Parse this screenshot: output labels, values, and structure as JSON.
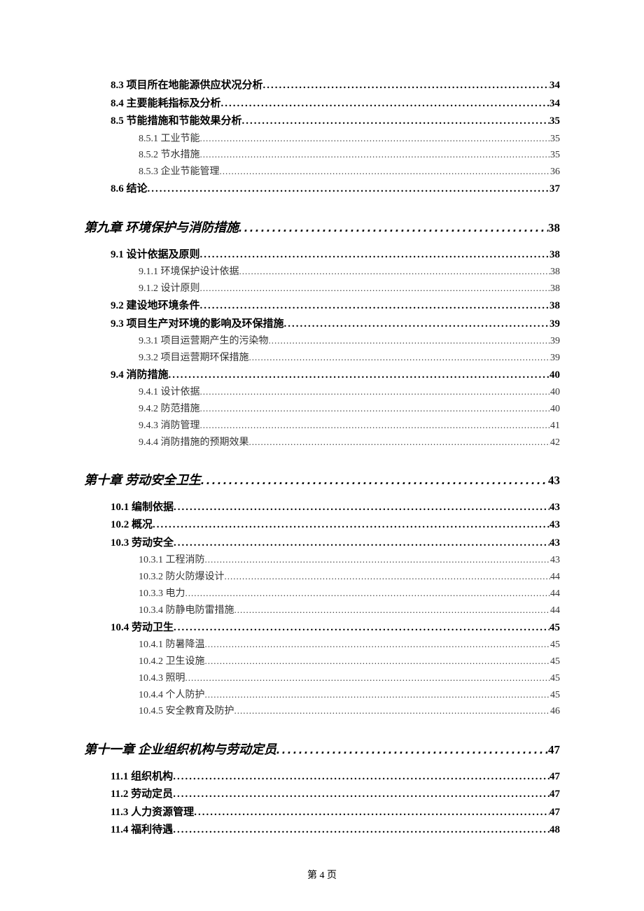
{
  "dots_char": ".",
  "footer": "第 4 页",
  "toc": [
    {
      "level": "section",
      "label": "8.3 项目所在地能源供应状况分析",
      "page": "34"
    },
    {
      "level": "section",
      "label": "8.4 主要能耗指标及分析",
      "page": "34"
    },
    {
      "level": "section",
      "label": "8.5 节能措施和节能效果分析",
      "page": "35"
    },
    {
      "level": "subsection",
      "label": "8.5.1 工业节能",
      "page": "35"
    },
    {
      "level": "subsection",
      "label": "8.5.2 节水措施",
      "page": "35"
    },
    {
      "level": "subsection",
      "label": "8.5.3 企业节能管理",
      "page": "36"
    },
    {
      "level": "section",
      "label": "8.6 结论",
      "page": "37"
    },
    {
      "level": "chapter",
      "label": "第九章  环境保护与消防措施",
      "page": "38"
    },
    {
      "level": "section",
      "label": "9.1 设计依据及原则",
      "page": "38"
    },
    {
      "level": "subsection",
      "label": "9.1.1 环境保护设计依据",
      "page": "38"
    },
    {
      "level": "subsection",
      "label": "9.1.2 设计原则",
      "page": "38"
    },
    {
      "level": "section",
      "label": "9.2 建设地环境条件",
      "page": "38"
    },
    {
      "level": "section",
      "label": "9.3  项目生产对环境的影响及环保措施",
      "page": "39"
    },
    {
      "level": "subsection",
      "label": "9.3.1  项目运营期产生的污染物",
      "page": "39"
    },
    {
      "level": "subsection",
      "label": "9.3.2  项目运营期环保措施",
      "page": "39"
    },
    {
      "level": "section",
      "label": "9.4 消防措施",
      "page": "40"
    },
    {
      "level": "subsection",
      "label": "9.4.1 设计依据",
      "page": "40"
    },
    {
      "level": "subsection",
      "label": "9.4.2 防范措施",
      "page": "40"
    },
    {
      "level": "subsection",
      "label": "9.4.3 消防管理",
      "page": "41"
    },
    {
      "level": "subsection",
      "label": "9.4.4 消防措施的预期效果",
      "page": "42"
    },
    {
      "level": "chapter",
      "label": "第十章  劳动安全卫生",
      "page": "43"
    },
    {
      "level": "section",
      "label": "10.1 编制依据",
      "page": "43"
    },
    {
      "level": "section",
      "label": "10.2 概况",
      "page": "43"
    },
    {
      "level": "section",
      "label": "10.3  劳动安全",
      "page": "43"
    },
    {
      "level": "subsection",
      "label": "10.3.1 工程消防",
      "page": "43"
    },
    {
      "level": "subsection",
      "label": "10.3.2 防火防爆设计",
      "page": "44"
    },
    {
      "level": "subsection",
      "label": "10.3.3 电力",
      "page": "44"
    },
    {
      "level": "subsection",
      "label": "10.3.4 防静电防雷措施",
      "page": "44"
    },
    {
      "level": "section",
      "label": "10.4 劳动卫生",
      "page": "45"
    },
    {
      "level": "subsection",
      "label": "10.4.1 防暑降温",
      "page": "45"
    },
    {
      "level": "subsection",
      "label": "10.4.2 卫生设施",
      "page": "45"
    },
    {
      "level": "subsection",
      "label": "10.4.3 照明",
      "page": "45"
    },
    {
      "level": "subsection",
      "label": "10.4.4 个人防护",
      "page": "45"
    },
    {
      "level": "subsection",
      "label": "10.4.5 安全教育及防护",
      "page": "46"
    },
    {
      "level": "chapter",
      "label": "第十一章  企业组织机构与劳动定员",
      "page": "47"
    },
    {
      "level": "section",
      "label": "11.1 组织机构",
      "page": "47"
    },
    {
      "level": "section",
      "label": "11.2 劳动定员",
      "page": "47"
    },
    {
      "level": "section",
      "label": "11.3 人力资源管理",
      "page": "47"
    },
    {
      "level": "section",
      "label": "11.4 福利待遇",
      "page": "48"
    }
  ]
}
